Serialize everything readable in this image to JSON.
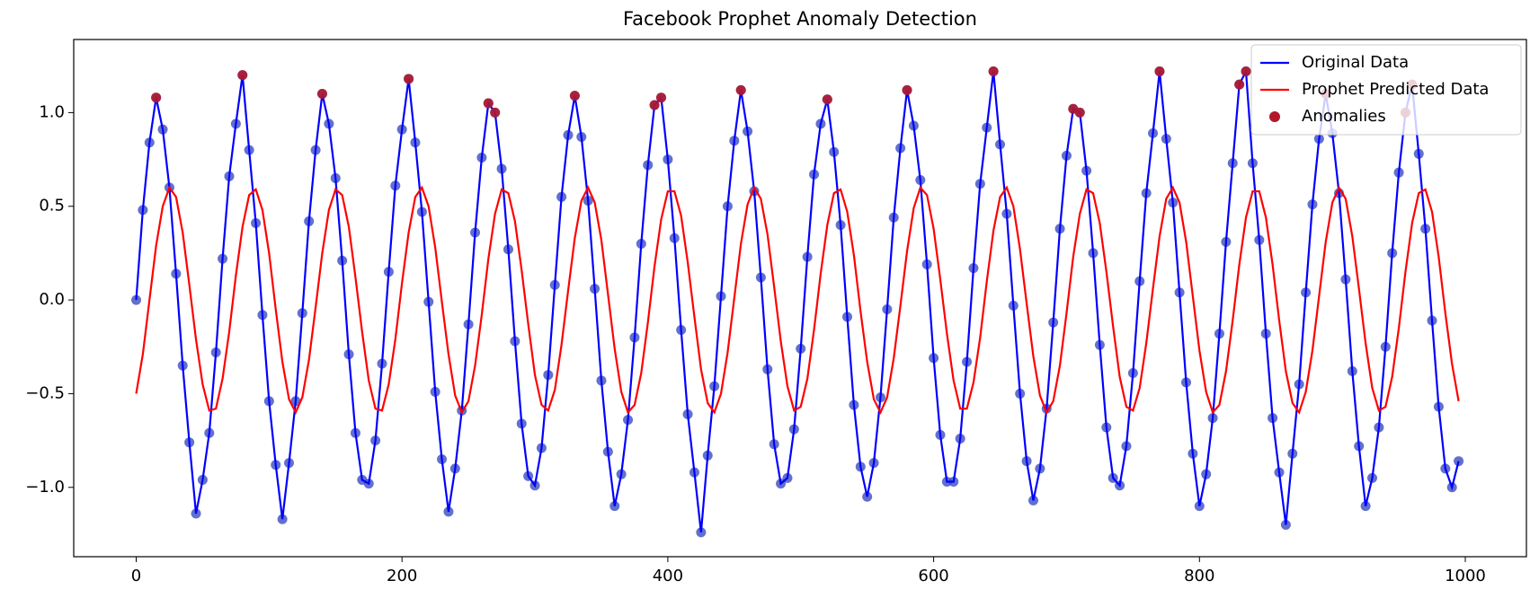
{
  "chart_data": {
    "type": "line",
    "title": "Facebook Prophet Anomaly Detection",
    "xlim": [
      -47,
      1046
    ],
    "ylim": [
      -1.37,
      1.39
    ],
    "xticks": [
      0,
      200,
      400,
      600,
      800,
      1000
    ],
    "yticks": [
      {
        "value": -1.0,
        "label": "−1.0"
      },
      {
        "value": -0.5,
        "label": "−0.5"
      },
      {
        "value": 0.0,
        "label": "0.0"
      },
      {
        "value": 0.5,
        "label": "0.5"
      },
      {
        "value": 1.0,
        "label": "1.0"
      }
    ],
    "legend": "upper right",
    "series": [
      {
        "name": "Original Data",
        "color": "#0000ff",
        "marker": true,
        "marker_color": "#3b4cc0",
        "x": [
          0,
          5,
          10,
          15,
          20,
          25,
          30,
          35,
          40,
          45,
          50,
          55,
          60,
          65,
          70,
          75,
          80,
          85,
          90,
          95,
          100,
          105,
          110,
          115,
          120,
          125,
          130,
          135,
          140,
          145,
          150,
          155,
          160,
          165,
          170,
          175,
          180,
          185,
          190,
          195,
          200,
          205,
          210,
          215,
          220,
          225,
          230,
          235,
          240,
          245,
          250,
          255,
          260,
          265,
          270,
          275,
          280,
          285,
          290,
          295,
          300,
          305,
          310,
          315,
          320,
          325,
          330,
          335,
          340,
          345,
          350,
          355,
          360,
          365,
          370,
          375,
          380,
          385,
          390,
          395,
          400,
          405,
          410,
          415,
          420,
          425,
          430,
          435,
          440,
          445,
          450,
          455,
          460,
          465,
          470,
          475,
          480,
          485,
          490,
          495,
          500,
          505,
          510,
          515,
          520,
          525,
          530,
          535,
          540,
          545,
          550,
          555,
          560,
          565,
          570,
          575,
          580,
          585,
          590,
          595,
          600,
          605,
          610,
          615,
          620,
          625,
          630,
          635,
          640,
          645,
          650,
          655,
          660,
          665,
          670,
          675,
          680,
          685,
          690,
          695,
          700,
          705,
          710,
          715,
          720,
          725,
          730,
          735,
          740,
          745,
          750,
          755,
          760,
          765,
          770,
          775,
          780,
          785,
          790,
          795,
          800,
          805,
          810,
          815,
          820,
          825,
          830,
          835,
          840,
          845,
          850,
          855,
          860,
          865,
          870,
          875,
          880,
          885,
          890,
          895,
          900,
          905,
          910,
          915,
          920,
          925,
          930,
          935,
          940,
          945,
          950,
          955,
          960,
          965,
          970,
          975,
          980,
          985,
          990,
          995
        ],
        "values": [
          0.0,
          0.48,
          0.84,
          1.08,
          0.91,
          0.6,
          0.14,
          -0.35,
          -0.76,
          -1.14,
          -0.96,
          -0.71,
          -0.28,
          0.22,
          0.66,
          0.94,
          1.2,
          0.8,
          0.41,
          -0.08,
          -0.54,
          -0.88,
          -1.17,
          -0.87,
          -0.54,
          -0.07,
          0.42,
          0.8,
          1.1,
          0.94,
          0.65,
          0.21,
          -0.29,
          -0.71,
          -0.96,
          -0.98,
          -0.75,
          -0.34,
          0.15,
          0.61,
          0.91,
          1.18,
          0.84,
          0.47,
          -0.01,
          -0.49,
          -0.85,
          -1.13,
          -0.9,
          -0.59,
          -0.13,
          0.36,
          0.76,
          1.05,
          1.0,
          0.7,
          0.27,
          -0.22,
          -0.66,
          -0.94,
          -0.99,
          -0.79,
          -0.4,
          0.08,
          0.55,
          0.88,
          1.09,
          0.87,
          0.53,
          0.06,
          -0.43,
          -0.81,
          -1.1,
          -0.93,
          -0.64,
          -0.2,
          0.3,
          0.72,
          1.04,
          1.08,
          0.75,
          0.33,
          -0.16,
          -0.61,
          -0.92,
          -1.24,
          -0.83,
          -0.46,
          0.02,
          0.5,
          0.85,
          1.12,
          0.9,
          0.58,
          0.12,
          -0.37,
          -0.77,
          -0.98,
          -0.95,
          -0.69,
          -0.26,
          0.23,
          0.67,
          0.94,
          1.07,
          0.79,
          0.4,
          -0.09,
          -0.56,
          -0.89,
          -1.05,
          -0.87,
          -0.52,
          -0.05,
          0.44,
          0.81,
          1.12,
          0.93,
          0.64,
          0.19,
          -0.31,
          -0.72,
          -0.97,
          -0.97,
          -0.74,
          -0.33,
          0.17,
          0.62,
          0.92,
          1.22,
          0.83,
          0.46,
          -0.03,
          -0.5,
          -0.86,
          -1.07,
          -0.9,
          -0.58,
          -0.12,
          0.38,
          0.77,
          1.02,
          1.0,
          0.69,
          0.25,
          -0.24,
          -0.68,
          -0.95,
          -0.99,
          -0.78,
          -0.39,
          0.1,
          0.57,
          0.89,
          1.22,
          0.86,
          0.52,
          0.04,
          -0.44,
          -0.82,
          -1.1,
          -0.93,
          -0.63,
          -0.18,
          0.31,
          0.73,
          1.15,
          1.22,
          0.73,
          0.32,
          -0.18,
          -0.63,
          -0.92,
          -1.2,
          -0.82,
          -0.45,
          0.04,
          0.51,
          0.86,
          1.1,
          0.89,
          0.57,
          0.11,
          -0.38,
          -0.78,
          -1.1,
          -0.95,
          -0.68,
          -0.25,
          0.25,
          0.68,
          1.0,
          1.15,
          0.78,
          0.38,
          -0.11,
          -0.57,
          -0.9,
          -1.0,
          -0.86
        ]
      },
      {
        "name": "Prophet Predicted Data",
        "color": "#ff0000",
        "x": [
          0,
          5,
          10,
          15,
          20,
          25,
          30,
          35,
          40,
          45,
          50,
          55,
          60,
          65,
          70,
          75,
          80,
          85,
          90,
          95,
          100,
          105,
          110,
          115,
          120,
          125,
          130,
          135,
          140,
          145,
          150,
          155,
          160,
          165,
          170,
          175,
          180,
          185,
          190,
          195,
          200,
          205,
          210,
          215,
          220,
          225,
          230,
          235,
          240,
          245,
          250,
          255,
          260,
          265,
          270,
          275,
          280,
          285,
          290,
          295,
          300,
          305,
          310,
          315,
          320,
          325,
          330,
          335,
          340,
          345,
          350,
          355,
          360,
          365,
          370,
          375,
          380,
          385,
          390,
          395,
          400,
          405,
          410,
          415,
          420,
          425,
          430,
          435,
          440,
          445,
          450,
          455,
          460,
          465,
          470,
          475,
          480,
          485,
          490,
          495,
          500,
          505,
          510,
          515,
          520,
          525,
          530,
          535,
          540,
          545,
          550,
          555,
          560,
          565,
          570,
          575,
          580,
          585,
          590,
          595,
          600,
          605,
          610,
          615,
          620,
          625,
          630,
          635,
          640,
          645,
          650,
          655,
          660,
          665,
          670,
          675,
          680,
          685,
          690,
          695,
          700,
          705,
          710,
          715,
          720,
          725,
          730,
          735,
          740,
          745,
          750,
          755,
          760,
          765,
          770,
          775,
          780,
          785,
          790,
          795,
          800,
          805,
          810,
          815,
          820,
          825,
          830,
          835,
          840,
          845,
          850,
          855,
          860,
          865,
          870,
          875,
          880,
          885,
          890,
          895,
          900,
          905,
          910,
          915,
          920,
          925,
          930,
          935,
          940,
          945,
          950,
          955,
          960,
          965,
          970,
          975,
          980,
          985,
          990,
          995
        ],
        "values": [
          -0.5,
          -0.29,
          0.0,
          0.29,
          0.5,
          0.6,
          0.55,
          0.36,
          0.08,
          -0.21,
          -0.45,
          -0.59,
          -0.58,
          -0.42,
          -0.17,
          0.13,
          0.39,
          0.56,
          0.59,
          0.48,
          0.25,
          -0.05,
          -0.33,
          -0.53,
          -0.6,
          -0.52,
          -0.32,
          -0.04,
          0.25,
          0.48,
          0.59,
          0.56,
          0.39,
          0.12,
          -0.17,
          -0.43,
          -0.58,
          -0.59,
          -0.45,
          -0.21,
          0.09,
          0.36,
          0.55,
          0.6,
          0.5,
          0.28,
          -0.01,
          -0.29,
          -0.51,
          -0.6,
          -0.54,
          -0.35,
          -0.08,
          0.22,
          0.46,
          0.59,
          0.57,
          0.42,
          0.16,
          -0.13,
          -0.4,
          -0.56,
          -0.59,
          -0.48,
          -0.24,
          0.05,
          0.33,
          0.53,
          0.6,
          0.52,
          0.32,
          0.03,
          -0.26,
          -0.49,
          -0.6,
          -0.56,
          -0.39,
          -0.12,
          0.18,
          0.43,
          0.58,
          0.58,
          0.45,
          0.2,
          -0.09,
          -0.37,
          -0.55,
          -0.6,
          -0.5,
          -0.28,
          0.01,
          0.3,
          0.51,
          0.6,
          0.54,
          0.35,
          0.07,
          -0.22,
          -0.46,
          -0.59,
          -0.57,
          -0.42,
          -0.16,
          0.14,
          0.4,
          0.57,
          0.59,
          0.47,
          0.24,
          -0.06,
          -0.33,
          -0.53,
          -0.6,
          -0.52,
          -0.31,
          -0.03,
          0.26,
          0.49,
          0.6,
          0.56,
          0.38,
          0.11,
          -0.18,
          -0.43,
          -0.58,
          -0.58,
          -0.44,
          -0.2,
          0.1,
          0.37,
          0.55,
          0.6,
          0.5,
          0.27,
          -0.02,
          -0.3,
          -0.51,
          -0.6,
          -0.54,
          -0.35,
          -0.07,
          0.23,
          0.46,
          0.59,
          0.57,
          0.41,
          0.15,
          -0.14,
          -0.41,
          -0.57,
          -0.59,
          -0.47,
          -0.23,
          0.06,
          0.34,
          0.54,
          0.6,
          0.52,
          0.31,
          0.02,
          -0.27,
          -0.49,
          -0.6,
          -0.56,
          -0.38,
          -0.11,
          0.19,
          0.44,
          0.58,
          0.58,
          0.44,
          0.19,
          -0.11,
          -0.38,
          -0.55,
          -0.6,
          -0.49,
          -0.27,
          0.02,
          0.31,
          0.52,
          0.6,
          0.54,
          0.34,
          0.06,
          -0.23,
          -0.47,
          -0.59,
          -0.57,
          -0.41,
          -0.15,
          0.15,
          0.41,
          0.57,
          0.59,
          0.47,
          0.23,
          -0.07,
          -0.34,
          -0.54
        ]
      },
      {
        "name": "Anomalies",
        "type": "scatter",
        "color": "#b2182b",
        "x": [
          15,
          80,
          140,
          205,
          265,
          270,
          330,
          390,
          395,
          455,
          520,
          580,
          645,
          705,
          710,
          770,
          830,
          835,
          895,
          955,
          960
        ],
        "values": [
          1.08,
          1.2,
          1.1,
          1.18,
          1.05,
          1.0,
          1.09,
          1.04,
          1.08,
          1.12,
          1.07,
          1.12,
          1.22,
          1.02,
          1.0,
          1.22,
          1.15,
          1.22,
          1.1,
          1.0,
          1.15
        ]
      }
    ]
  }
}
